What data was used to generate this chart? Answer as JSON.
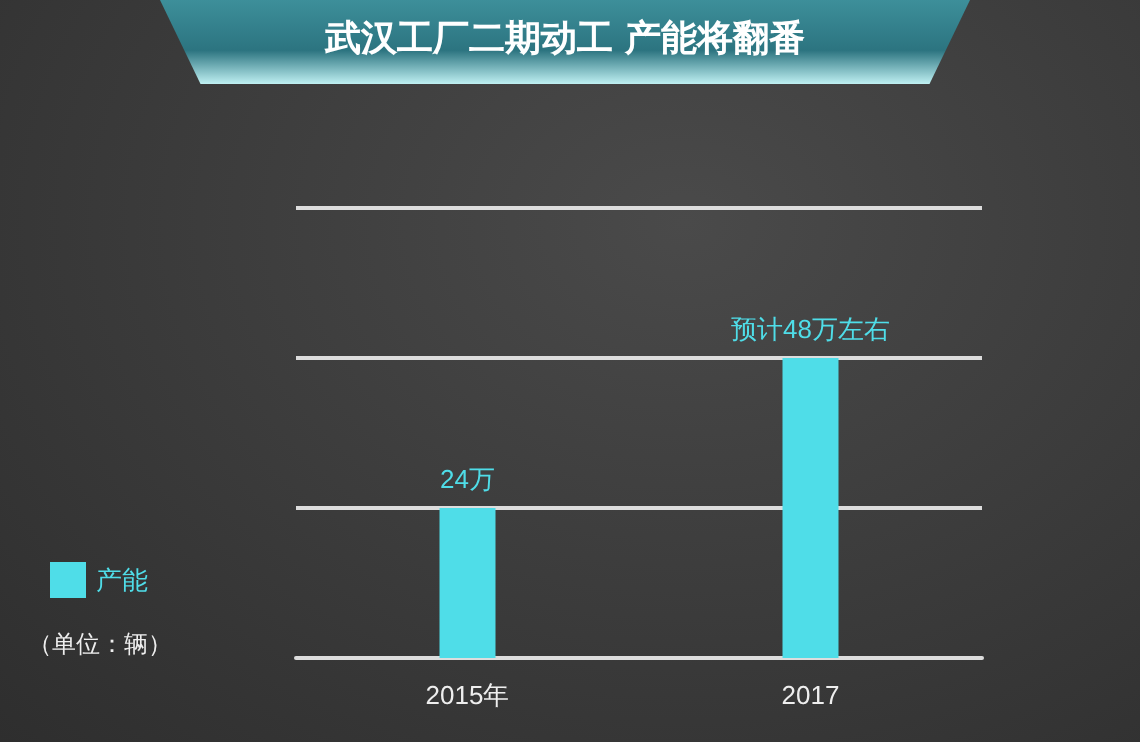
{
  "chart_data": {
    "type": "bar",
    "title": "武汉工厂二期动工 产能将翻番",
    "categories": [
      "2015年",
      "2017"
    ],
    "series": [
      {
        "name": "产能",
        "color": "#4fdde8",
        "values": [
          24,
          48
        ],
        "value_labels": [
          "24万",
          "预计48万左右"
        ]
      }
    ],
    "ylim": [
      0,
      72
    ],
    "yticks": [
      {
        "value": 0,
        "label": null
      },
      {
        "value": 24,
        "label": null
      },
      {
        "value": 48,
        "label": null
      },
      {
        "value": 72,
        "label": null
      }
    ],
    "grid": "y",
    "tick_labels": "x",
    "legend": "left",
    "annotations": [
      "（单位：辆）"
    ]
  }
}
